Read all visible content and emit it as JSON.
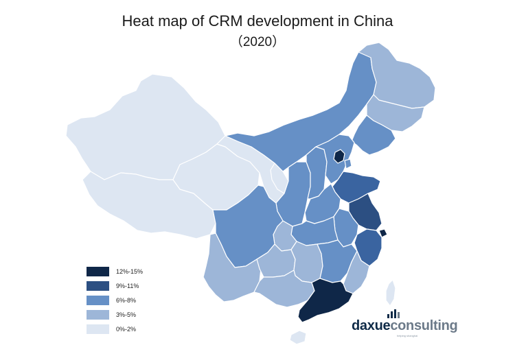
{
  "title": "Heat map of CRM development in China",
  "subtitle": "（2020）",
  "colors": {
    "c0": "#dde6f2",
    "c1": "#9db6d8",
    "c2": "#6690c6",
    "c3": "#3a64a0",
    "c4": "#0f2748",
    "border": "#ffffff"
  },
  "legend": [
    {
      "label": "12%-15%",
      "color": "#0f2748"
    },
    {
      "label": "9%-11%",
      "color": "#2c4f82"
    },
    {
      "label": "6%-8%",
      "color": "#6690c6"
    },
    {
      "label": "3%-5%",
      "color": "#9db6d8"
    },
    {
      "label": "0%-2%",
      "color": "#dde6f2"
    }
  ],
  "logo": {
    "part1": "daxue",
    "part2": "consulting",
    "tagline": "helping shanghai"
  }
}
